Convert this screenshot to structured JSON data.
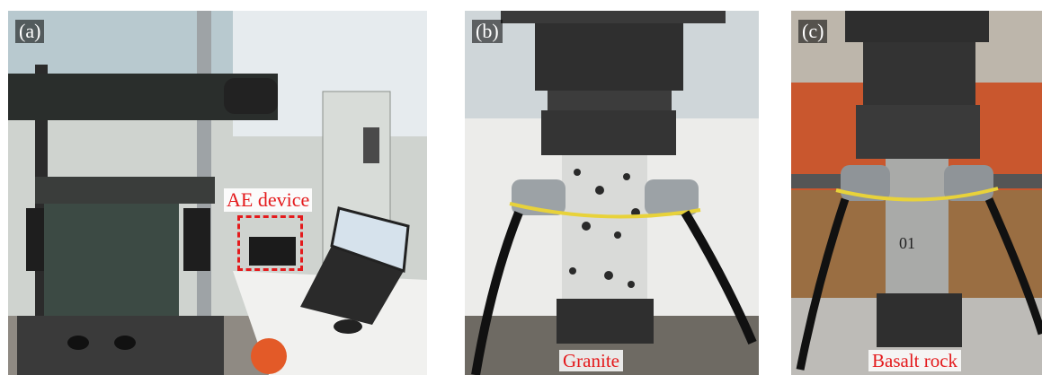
{
  "panels": [
    {
      "label": "(a)",
      "annotation": "AE device",
      "icon": "testing-machine-photo"
    },
    {
      "label": "(b)",
      "caption": "Granite",
      "icon": "granite-specimen-photo"
    },
    {
      "label": "(c)",
      "caption": "Basalt rock",
      "icon": "basalt-specimen-photo"
    }
  ],
  "colors": {
    "annotation_red": "#e41a1c",
    "label_white": "#ffffff"
  }
}
